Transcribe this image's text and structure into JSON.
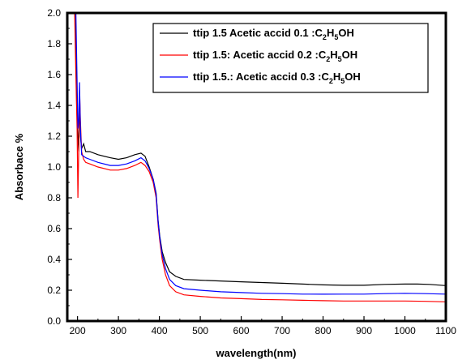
{
  "chart_data": {
    "type": "line",
    "title": "",
    "xlabel": "wavelength(nm)",
    "ylabel": "Absorbace %",
    "xlim": [
      175,
      1100
    ],
    "ylim": [
      0.0,
      2.0
    ],
    "xticks": [
      200,
      300,
      400,
      500,
      600,
      700,
      800,
      900,
      1000,
      1100
    ],
    "yticks": [
      0.0,
      0.2,
      0.4,
      0.6,
      0.8,
      1.0,
      1.2,
      1.4,
      1.6,
      1.8,
      2.0
    ],
    "ytick_labels": [
      "0.0",
      "0.2",
      "0.4",
      "0.6",
      "0.8",
      "1.0",
      "1.2",
      "1.4",
      "1.6",
      "1.8",
      "2.0"
    ],
    "grid": false,
    "legend_position": "top-right",
    "series": [
      {
        "name": "ttip 1.5 Acetic accid 0.1 :C2H5OH",
        "legend": {
          "pre": "ttip 1.5 Acetic accid 0.1 :C",
          "s1": "2",
          "mid": "H",
          "s2": "5",
          "post": "OH"
        },
        "color": "#000000",
        "points": [
          [
            195,
            2.0
          ],
          [
            198,
            1.4
          ],
          [
            200,
            1.25
          ],
          [
            203,
            1.1
          ],
          [
            205,
            1.45
          ],
          [
            207,
            1.2
          ],
          [
            210,
            1.12
          ],
          [
            215,
            1.15
          ],
          [
            220,
            1.1
          ],
          [
            230,
            1.1
          ],
          [
            250,
            1.08
          ],
          [
            280,
            1.06
          ],
          [
            300,
            1.05
          ],
          [
            320,
            1.06
          ],
          [
            340,
            1.08
          ],
          [
            355,
            1.09
          ],
          [
            365,
            1.07
          ],
          [
            375,
            1.0
          ],
          [
            385,
            0.92
          ],
          [
            392,
            0.83
          ],
          [
            397,
            0.65
          ],
          [
            401,
            0.55
          ],
          [
            407,
            0.45
          ],
          [
            415,
            0.38
          ],
          [
            425,
            0.32
          ],
          [
            440,
            0.29
          ],
          [
            460,
            0.27
          ],
          [
            500,
            0.265
          ],
          [
            550,
            0.26
          ],
          [
            600,
            0.255
          ],
          [
            650,
            0.25
          ],
          [
            700,
            0.245
          ],
          [
            750,
            0.24
          ],
          [
            800,
            0.235
          ],
          [
            850,
            0.232
          ],
          [
            900,
            0.232
          ],
          [
            950,
            0.238
          ],
          [
            1000,
            0.24
          ],
          [
            1030,
            0.24
          ],
          [
            1060,
            0.238
          ],
          [
            1100,
            0.23
          ]
        ]
      },
      {
        "name": "ttip 1.5: Acetic accid 0.2 :C2H5OH",
        "legend": {
          "pre": "ttip 1.5: Acetic accid 0.2 :C",
          "s1": "2",
          "mid": "H",
          "s2": "5",
          "post": "OH"
        },
        "color": "#ff0000",
        "points": [
          [
            193,
            2.0
          ],
          [
            196,
            1.6
          ],
          [
            199,
            1.25
          ],
          [
            201,
            0.8
          ],
          [
            203,
            1.1
          ],
          [
            205,
            1.5
          ],
          [
            207,
            1.3
          ],
          [
            210,
            1.1
          ],
          [
            215,
            1.05
          ],
          [
            220,
            1.03
          ],
          [
            230,
            1.02
          ],
          [
            250,
            1.0
          ],
          [
            280,
            0.98
          ],
          [
            300,
            0.98
          ],
          [
            320,
            0.99
          ],
          [
            340,
            1.01
          ],
          [
            355,
            1.03
          ],
          [
            365,
            1.01
          ],
          [
            375,
            0.97
          ],
          [
            385,
            0.9
          ],
          [
            392,
            0.8
          ],
          [
            397,
            0.62
          ],
          [
            401,
            0.52
          ],
          [
            407,
            0.4
          ],
          [
            415,
            0.3
          ],
          [
            425,
            0.23
          ],
          [
            440,
            0.19
          ],
          [
            460,
            0.17
          ],
          [
            500,
            0.16
          ],
          [
            550,
            0.15
          ],
          [
            600,
            0.145
          ],
          [
            650,
            0.14
          ],
          [
            700,
            0.138
          ],
          [
            750,
            0.135
          ],
          [
            800,
            0.132
          ],
          [
            850,
            0.13
          ],
          [
            900,
            0.13
          ],
          [
            950,
            0.13
          ],
          [
            1000,
            0.13
          ],
          [
            1050,
            0.128
          ],
          [
            1100,
            0.125
          ]
        ]
      },
      {
        "name": "ttip 1.5.: Acetic accid 0.3 :C2H5OH",
        "legend": {
          "pre": "ttip 1.5.: Acetic accid 0.3 :C",
          "s1": "2",
          "mid": "H",
          "s2": "5",
          "post": "OH"
        },
        "color": "#0000ff",
        "points": [
          [
            196,
            2.0
          ],
          [
            199,
            1.55
          ],
          [
            201,
            1.25
          ],
          [
            203,
            1.3
          ],
          [
            205,
            1.55
          ],
          [
            207,
            1.25
          ],
          [
            210,
            1.08
          ],
          [
            215,
            1.07
          ],
          [
            220,
            1.06
          ],
          [
            230,
            1.05
          ],
          [
            250,
            1.03
          ],
          [
            280,
            1.01
          ],
          [
            300,
            1.01
          ],
          [
            320,
            1.02
          ],
          [
            340,
            1.04
          ],
          [
            355,
            1.06
          ],
          [
            365,
            1.04
          ],
          [
            375,
            0.99
          ],
          [
            385,
            0.92
          ],
          [
            392,
            0.82
          ],
          [
            397,
            0.64
          ],
          [
            401,
            0.54
          ],
          [
            407,
            0.43
          ],
          [
            415,
            0.34
          ],
          [
            425,
            0.27
          ],
          [
            440,
            0.23
          ],
          [
            460,
            0.21
          ],
          [
            500,
            0.2
          ],
          [
            550,
            0.19
          ],
          [
            600,
            0.185
          ],
          [
            650,
            0.18
          ],
          [
            700,
            0.178
          ],
          [
            750,
            0.175
          ],
          [
            800,
            0.174
          ],
          [
            850,
            0.175
          ],
          [
            900,
            0.175
          ],
          [
            950,
            0.178
          ],
          [
            1000,
            0.18
          ],
          [
            1050,
            0.178
          ],
          [
            1100,
            0.175
          ]
        ]
      }
    ]
  }
}
